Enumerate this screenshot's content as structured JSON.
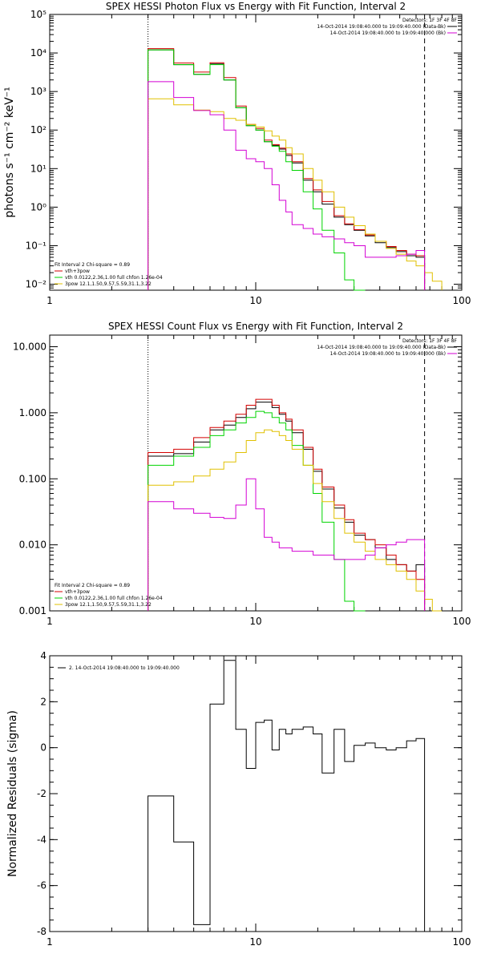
{
  "chart_data": [
    {
      "type": "line",
      "title": "SPEX HESSI Photon Flux vs Energy with Fit Function, Interval 2",
      "ylabel": "photons s⁻¹ cm⁻² keV⁻¹",
      "xlabel": "",
      "xscale": "log",
      "yscale": "log",
      "xlim": [
        1,
        100
      ],
      "ylim": [
        0.007,
        100000
      ],
      "xticks": [
        {
          "v": 1,
          "label": "1"
        },
        {
          "v": 10,
          "label": "10"
        },
        {
          "v": 100,
          "label": "100"
        }
      ],
      "yticks": [
        {
          "v": 0.01,
          "label": "10⁻²"
        },
        {
          "v": 0.1,
          "label": "10⁻¹"
        },
        {
          "v": 1,
          "label": "10⁰"
        },
        {
          "v": 10,
          "label": "10¹"
        },
        {
          "v": 100,
          "label": "10²"
        },
        {
          "v": 1000,
          "label": "10³"
        },
        {
          "v": 10000,
          "label": "10⁴"
        },
        {
          "v": 100000,
          "label": "10⁵"
        }
      ],
      "vlines": [
        {
          "x": 3.0,
          "style": "dotted"
        },
        {
          "x": 66.0,
          "style": "dashed"
        }
      ],
      "header": {
        "detectors": "Detectors: 1F 3F 4F 8F",
        "line1": "14-Oct-2014 19:08:40.000 to 19:09:40.000 (Data-Bk)",
        "line2": "14-Oct-2014 19:08:40.000 to 19:09:40.000 (Bk)"
      },
      "fit_header": "Fit Interval  2    Chi-square = 0.89",
      "legend": [
        {
          "label": "vth+3pow",
          "color": "#d40000"
        },
        {
          "label": "vth 0.0122,2.36,1.00  full chfon 1.26e-04",
          "color": "#00d400"
        },
        {
          "label": "3pow 12.1,1.50,9.57,5.59,31.1,3.22",
          "color": "#e0c000"
        }
      ],
      "edges": [
        3.0,
        3.5,
        4.0,
        4.5,
        5.0,
        5.5,
        6.0,
        6.5,
        7.0,
        7.5,
        8.0,
        9.0,
        10.0,
        11.0,
        12.0,
        13.0,
        14.0,
        15.0,
        17.0,
        19.0,
        21.0,
        24.0,
        27.0,
        30.0,
        34.0,
        38.0,
        43.0,
        48.0,
        54.0,
        60.0,
        66.0,
        72.0,
        80.0
      ],
      "series": [
        {
          "color": "#000000",
          "values": [
            12000,
            12000,
            5000,
            5000,
            2800,
            2800,
            5200,
            5200,
            2000,
            2000,
            380,
            130,
            100,
            50,
            40,
            32,
            22,
            14,
            5.0,
            2.5,
            1.2,
            0.55,
            0.35,
            0.25,
            0.18,
            0.12,
            0.09,
            0.07,
            0.055,
            0.05,
            null,
            null
          ]
        },
        {
          "color": "#d40000",
          "values": [
            13000,
            13000,
            5500,
            5500,
            3200,
            3200,
            5600,
            5600,
            2300,
            2300,
            420,
            140,
            110,
            55,
            42,
            34,
            24,
            15,
            5.5,
            2.8,
            1.4,
            0.6,
            0.37,
            0.26,
            0.19,
            0.13,
            0.095,
            0.075,
            0.06,
            0.055,
            null,
            null
          ]
        },
        {
          "color": "#00d400",
          "values": [
            12000,
            12000,
            5000,
            5000,
            2800,
            2800,
            5000,
            5000,
            2000,
            2000,
            380,
            130,
            100,
            50,
            38,
            28,
            15,
            9.0,
            2.5,
            0.9,
            0.25,
            0.065,
            0.013,
            0.006,
            null,
            null,
            null,
            null,
            null,
            null,
            null,
            null
          ]
        },
        {
          "color": "#e0c000",
          "values": [
            650,
            650,
            450,
            450,
            330,
            330,
            300,
            300,
            200,
            200,
            180,
            140,
            120,
            95,
            70,
            55,
            35,
            24,
            10,
            5.0,
            2.5,
            1.0,
            0.55,
            0.33,
            0.2,
            0.13,
            0.085,
            0.06,
            0.04,
            0.03,
            0.02,
            0.012
          ]
        },
        {
          "color": "#d400d4",
          "values": [
            1800,
            1800,
            700,
            700,
            320,
            320,
            250,
            250,
            100,
            100,
            30,
            18,
            15,
            10,
            3.8,
            1.5,
            0.75,
            0.35,
            0.28,
            0.2,
            0.17,
            0.15,
            0.12,
            0.1,
            0.05,
            0.05,
            0.05,
            0.055,
            0.06,
            0.075,
            null,
            null
          ]
        }
      ]
    },
    {
      "type": "line",
      "title": "SPEX HESSI Count Flux vs Energy with Fit Function, Interval 2",
      "ylabel": "",
      "xlabel": "",
      "xscale": "log",
      "yscale": "log",
      "xlim": [
        1,
        100
      ],
      "ylim": [
        0.001,
        15
      ],
      "xticks": [
        {
          "v": 1,
          "label": "1"
        },
        {
          "v": 10,
          "label": "10"
        },
        {
          "v": 100,
          "label": "100"
        }
      ],
      "yticks": [
        {
          "v": 0.001,
          "label": "0.001"
        },
        {
          "v": 0.01,
          "label": "0.010"
        },
        {
          "v": 0.1,
          "label": "0.100"
        },
        {
          "v": 1,
          "label": "1.000"
        },
        {
          "v": 10,
          "label": "10.000"
        }
      ],
      "vlines": [
        {
          "x": 3.0,
          "style": "dotted"
        },
        {
          "x": 66.0,
          "style": "dashed"
        }
      ],
      "header": {
        "detectors": "Detectors: 1F 3F 4F 8F",
        "line1": "14-Oct-2014 19:08:40.000 to 19:09:40.000 (Data-Bk)",
        "line2": "14-Oct-2014 19:08:40.000 to 19:09:40.000 (Bk)"
      },
      "fit_header": "Fit Interval  2    Chi-square = 0.89",
      "legend": [
        {
          "label": "vth+3pow",
          "color": "#d40000"
        },
        {
          "label": "vth 0.0122,2.36,1.00  full chfon 1.26e-04",
          "color": "#00d400"
        },
        {
          "label": "3pow 12.1,1.50,9.57,5.59,31.1,3.22",
          "color": "#e0c000"
        }
      ],
      "edges": [
        3.0,
        3.5,
        4.0,
        4.5,
        5.0,
        5.5,
        6.0,
        6.5,
        7.0,
        7.5,
        8.0,
        9.0,
        10.0,
        11.0,
        12.0,
        13.0,
        14.0,
        15.0,
        17.0,
        19.0,
        21.0,
        24.0,
        27.0,
        30.0,
        34.0,
        38.0,
        43.0,
        48.0,
        54.0,
        60.0,
        66.0,
        72.0,
        80.0
      ],
      "series": [
        {
          "color": "#000000",
          "values": [
            0.22,
            0.22,
            0.24,
            0.24,
            0.36,
            0.36,
            0.55,
            0.55,
            0.65,
            0.65,
            0.85,
            1.15,
            1.45,
            1.45,
            1.2,
            0.95,
            0.75,
            0.5,
            0.28,
            0.13,
            0.07,
            0.036,
            0.022,
            0.014,
            0.012,
            0.009,
            0.006,
            0.005,
            0.004,
            0.005,
            null,
            null
          ]
        },
        {
          "color": "#d40000",
          "values": [
            0.25,
            0.25,
            0.28,
            0.28,
            0.42,
            0.42,
            0.6,
            0.6,
            0.75,
            0.75,
            0.95,
            1.3,
            1.6,
            1.6,
            1.3,
            1.0,
            0.8,
            0.55,
            0.3,
            0.14,
            0.075,
            0.04,
            0.024,
            0.015,
            0.012,
            0.01,
            0.007,
            0.005,
            0.004,
            0.003,
            null,
            null
          ]
        },
        {
          "color": "#00d400",
          "values": [
            0.16,
            0.16,
            0.22,
            0.22,
            0.3,
            0.3,
            0.45,
            0.45,
            0.55,
            0.55,
            0.7,
            0.85,
            1.05,
            1.0,
            0.85,
            0.7,
            0.55,
            0.32,
            0.16,
            0.06,
            0.022,
            0.006,
            0.0014,
            0.001,
            null,
            null,
            null,
            null,
            null,
            null,
            null,
            null
          ]
        },
        {
          "color": "#e0c000",
          "values": [
            0.08,
            0.08,
            0.09,
            0.09,
            0.11,
            0.11,
            0.14,
            0.14,
            0.18,
            0.18,
            0.25,
            0.38,
            0.5,
            0.55,
            0.52,
            0.45,
            0.38,
            0.28,
            0.16,
            0.085,
            0.045,
            0.025,
            0.015,
            0.011,
            0.008,
            0.006,
            0.005,
            0.004,
            0.003,
            0.002,
            0.0015,
            0.001
          ]
        },
        {
          "color": "#d400d4",
          "values": [
            0.045,
            0.045,
            0.035,
            0.035,
            0.03,
            0.03,
            0.026,
            0.026,
            0.025,
            0.025,
            0.04,
            0.1,
            0.035,
            0.013,
            0.011,
            0.009,
            0.009,
            0.008,
            0.008,
            0.007,
            0.007,
            0.006,
            0.006,
            0.006,
            0.007,
            0.009,
            0.01,
            0.011,
            0.012,
            0.012,
            null,
            null
          ]
        }
      ]
    },
    {
      "type": "line",
      "title": "",
      "ylabel": "Normalized Residuals (sigma)",
      "xlabel": "",
      "xscale": "log",
      "yscale": "linear",
      "xlim": [
        1,
        100
      ],
      "ylim": [
        -8,
        4
      ],
      "xticks": [
        {
          "v": 1,
          "label": "1"
        },
        {
          "v": 10,
          "label": "10"
        },
        {
          "v": 100,
          "label": "100"
        }
      ],
      "yticks": [
        {
          "v": -8,
          "label": "-8"
        },
        {
          "v": -6,
          "label": "-6"
        },
        {
          "v": -4,
          "label": "-4"
        },
        {
          "v": -2,
          "label": "-2"
        },
        {
          "v": 0,
          "label": "0"
        },
        {
          "v": 2,
          "label": "2"
        },
        {
          "v": 4,
          "label": "4"
        }
      ],
      "legend": [
        {
          "label": "2. 14-Oct-2014 19:08:40.000 to 19:09:40.000",
          "color": "#000000"
        }
      ],
      "edges": [
        3.0,
        4.0,
        5.0,
        6.0,
        7.0,
        8.0,
        9.0,
        10.0,
        11.0,
        12.0,
        13.0,
        14.0,
        15.0,
        17.0,
        19.0,
        21.0,
        24.0,
        27.0,
        30.0,
        34.0,
        38.0,
        43.0,
        48.0,
        54.0,
        60.0,
        66.0
      ],
      "series": [
        {
          "color": "#000000",
          "values": [
            -2.1,
            -4.1,
            -7.7,
            1.9,
            3.8,
            0.8,
            -0.9,
            1.1,
            1.2,
            -0.1,
            0.8,
            0.6,
            0.8,
            0.9,
            0.6,
            -1.1,
            0.8,
            -0.6,
            0.1,
            0.2,
            0.0,
            -0.1,
            0.0,
            0.3,
            0.4
          ]
        }
      ]
    }
  ]
}
